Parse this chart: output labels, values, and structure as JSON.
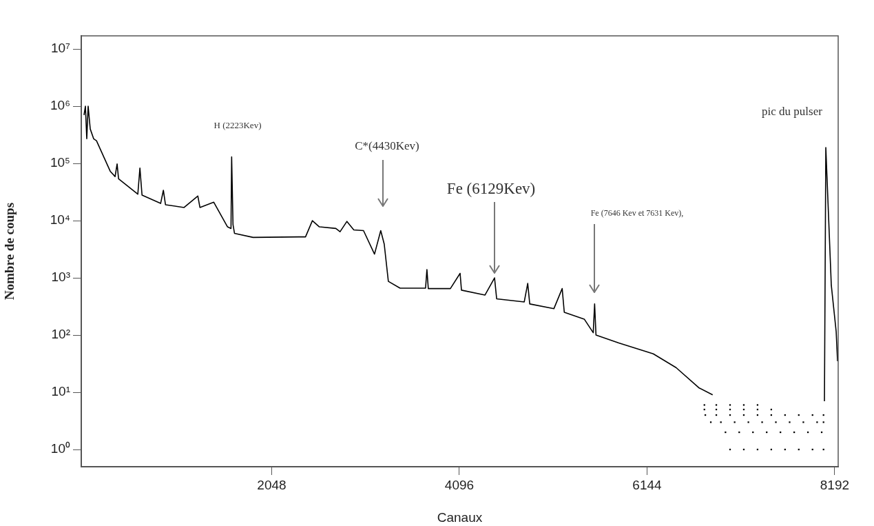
{
  "chart_data": {
    "type": "line",
    "xlabel": "Canaux",
    "ylabel": "Nombre de coups",
    "log": "y",
    "grid": false,
    "legend": false,
    "xlim": [
      -30,
      8230
    ],
    "xticks": [
      2048,
      4096,
      6144,
      8192
    ],
    "ylim": [
      0.5,
      17000000
    ],
    "yticks": [
      {
        "value": 1,
        "label": "10⁰"
      },
      {
        "value": 10,
        "label": "10¹"
      },
      {
        "value": 100,
        "label": "10²"
      },
      {
        "value": 1000,
        "label": "10³"
      },
      {
        "value": 10000,
        "label": "10⁴"
      },
      {
        "value": 100000,
        "label": "10⁵"
      },
      {
        "value": 1000000,
        "label": "10⁶"
      },
      {
        "value": 10000000,
        "label": "10⁷"
      }
    ],
    "series": [
      {
        "marker": "none",
        "color": "#000000",
        "x": [
          0,
          15,
          30,
          45,
          68,
          105,
          136,
          286,
          339,
          361,
          377,
          587,
          610,
          633,
          836,
          866,
          889,
          1092,
          1242,
          1265,
          1416,
          1566,
          1604,
          1611,
          1626,
          1642,
          1845,
          2342,
          2417,
          2492,
          2568,
          2748,
          2794,
          2869,
          2944,
          3050,
          3170,
          3238,
          3276,
          3321,
          3449,
          3727,
          3742,
          3757,
          3998,
          4104,
          4119,
          4375,
          4480,
          4503,
          4804,
          4842,
          4864,
          5128,
          5218,
          5241,
          5459,
          5557,
          5572,
          5587,
          5836,
          6212,
          6461,
          6709,
          6860
        ],
        "values": [
          700000,
          1000000,
          270000,
          1000000,
          400000,
          270000,
          250000,
          73000,
          59000,
          98000,
          54000,
          29000,
          83000,
          28000,
          20000,
          34000,
          19000,
          17000,
          27000,
          17000,
          21000,
          7800,
          7300,
          130000,
          8500,
          6000,
          5100,
          5200,
          5200,
          10000,
          7800,
          7300,
          6400,
          9700,
          6900,
          6700,
          2600,
          6700,
          3900,
          870,
          660,
          660,
          1400,
          650,
          650,
          1200,
          610,
          500,
          1000,
          430,
          380,
          800,
          350,
          290,
          650,
          250,
          190,
          110,
          350,
          100,
          73,
          47,
          27,
          12,
          9
        ]
      },
      {
        "marker": "none",
        "color": "#000000",
        "x": [
          8080,
          8095,
          8155,
          8208,
          8223
        ],
        "values": [
          7,
          190000,
          740,
          115,
          35
        ]
      },
      {
        "type": "scatter",
        "marker": "square",
        "color": "#000000",
        "x": [
          6770,
          6900,
          7050,
          7200,
          7350,
          6770,
          6900,
          7050,
          7200,
          7350,
          7500,
          6780,
          6900,
          7050,
          7200,
          7350,
          7500,
          7650,
          7800,
          7950,
          8070,
          6840,
          6950,
          7100,
          7250,
          7400,
          7550,
          7700,
          7850,
          8000,
          8070,
          7000,
          7150,
          7300,
          7450,
          7600,
          7750,
          7900,
          8050,
          7050,
          7200,
          7350,
          7500,
          7650,
          7800,
          7950,
          8070
        ],
        "values": [
          6,
          6,
          6,
          6,
          6,
          5,
          5,
          5,
          5,
          5,
          5,
          4,
          4,
          4,
          4,
          4,
          4,
          4,
          4,
          4,
          4,
          3,
          3,
          3,
          3,
          3,
          3,
          3,
          3,
          3,
          3,
          2,
          2,
          2,
          2,
          2,
          2,
          2,
          2,
          1,
          1,
          1,
          1,
          1,
          1,
          1,
          1
        ]
      }
    ],
    "annotations": [
      "H (2223Kev)",
      "C*(4430Kev)",
      {
        "text": "Fe (6129Kev)",
        "x": 4480,
        "y": 1000
      },
      "Fe (7646 Kev et 7631 Kev),",
      "pic du pulser"
    ]
  }
}
